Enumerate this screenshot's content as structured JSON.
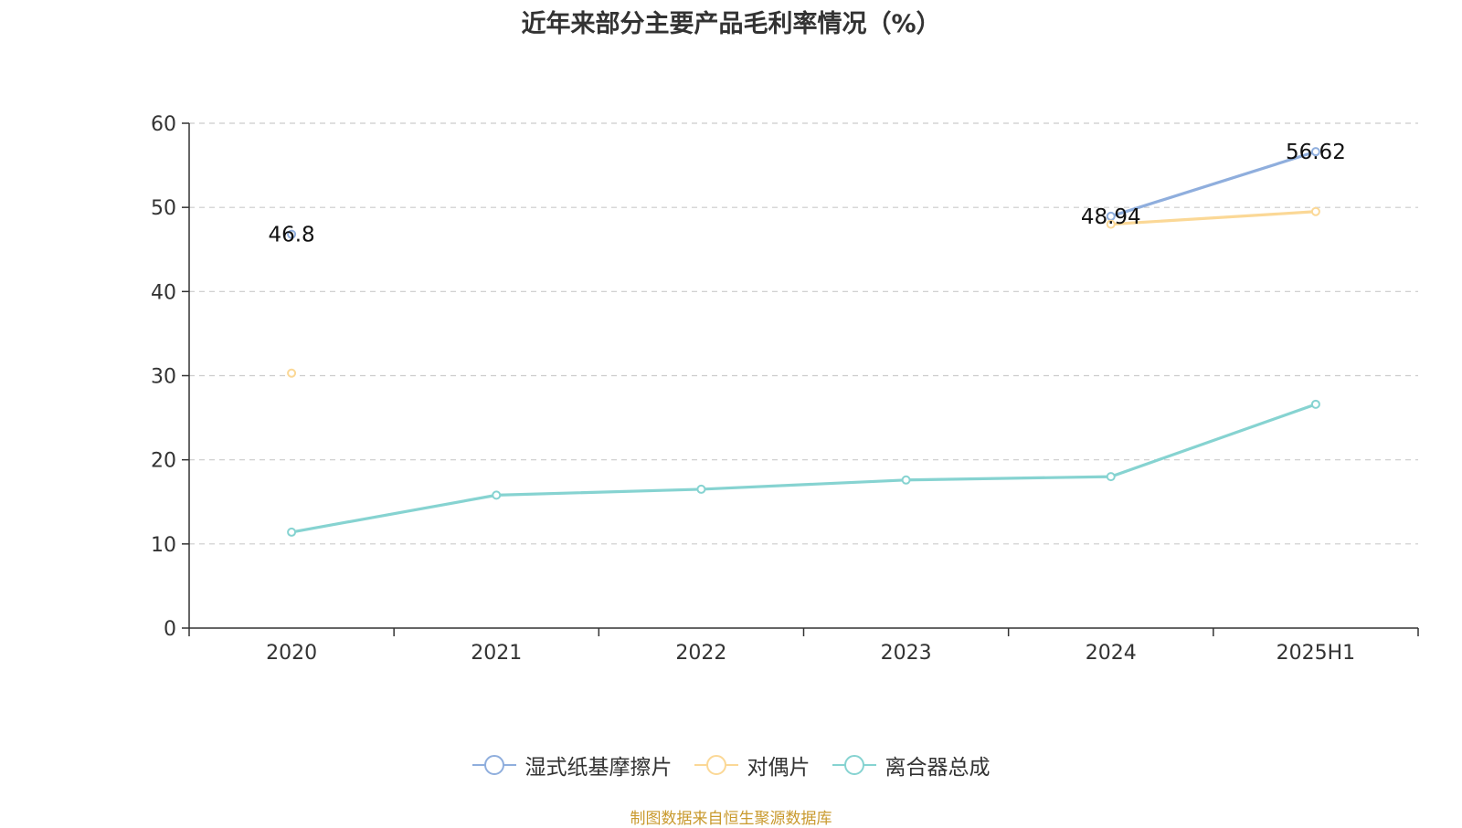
{
  "colors": {
    "series_1": "#8faedd",
    "series_2": "#fbd896",
    "series_3": "#86d3d1",
    "source_note": "#c99a2e",
    "axis": "#333333",
    "grid": "#cccccc"
  },
  "chart_data": {
    "type": "line",
    "title": "近年来部分主要产品毛利率情况（%）",
    "xlabel": "",
    "ylabel": "",
    "categories": [
      "2020",
      "2021",
      "2022",
      "2023",
      "2024",
      "2025H1"
    ],
    "ylim": [
      0,
      60
    ],
    "yticks": [
      "0",
      "10",
      "20",
      "30",
      "40",
      "50",
      "60"
    ],
    "grid": "horizontal dashed",
    "legend_position": "bottom",
    "series": [
      {
        "name": "湿式纸基摩擦片",
        "values": [
          46.8,
          null,
          null,
          null,
          48.94,
          56.62
        ]
      },
      {
        "name": "对偶片",
        "values": [
          30.3,
          null,
          null,
          null,
          48.0,
          49.5
        ]
      },
      {
        "name": "离合器总成",
        "values": [
          11.4,
          15.8,
          16.5,
          17.6,
          18.0,
          26.6
        ]
      }
    ],
    "data_labels": [
      {
        "series": 0,
        "index": 0,
        "text": "46.8"
      },
      {
        "series": 0,
        "index": 4,
        "text": "48.94"
      },
      {
        "series": 0,
        "index": 5,
        "text": "56.62"
      }
    ]
  },
  "source_note": "制图数据来自恒生聚源数据库"
}
